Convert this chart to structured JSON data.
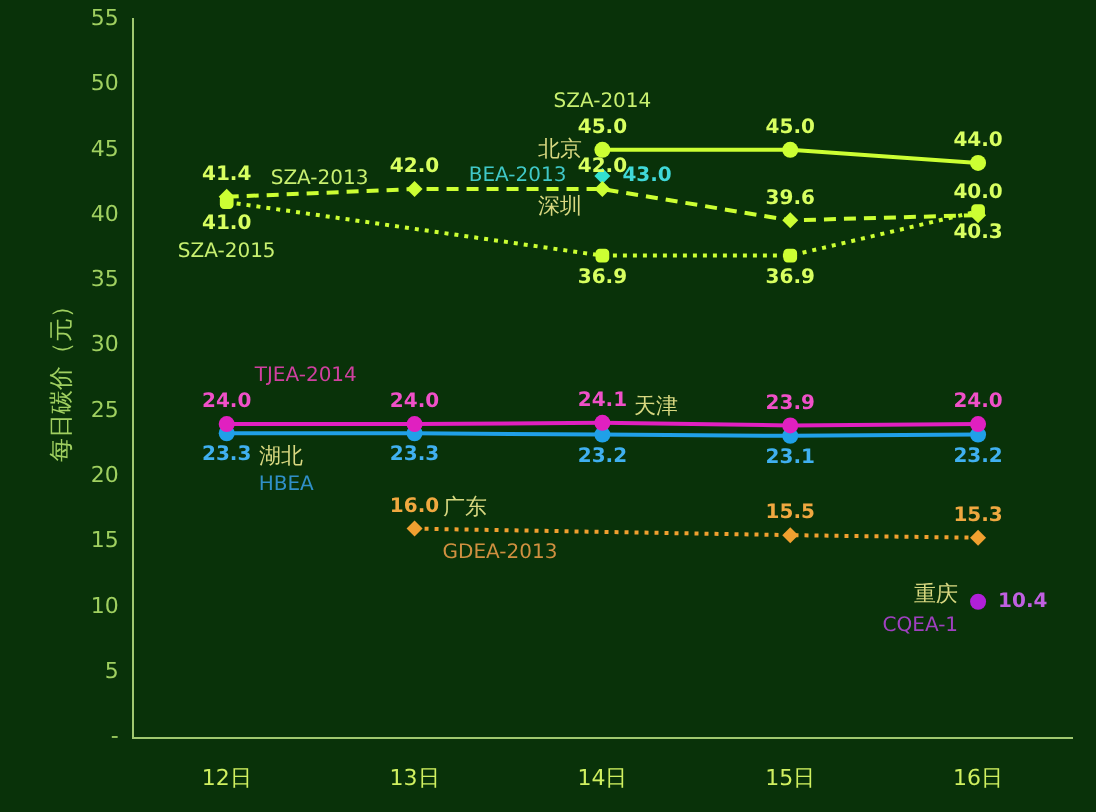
{
  "chart_data": {
    "type": "line",
    "ylabel": "每日碳价（元）",
    "categories": [
      "12日",
      "13日",
      "14日",
      "15日",
      "16日"
    ],
    "series": [
      {
        "name": "SZA-2013",
        "color": "#ccff33",
        "marker": "diamond",
        "line_style": "dashed",
        "values": [
          41.4,
          42.0,
          42.0,
          39.6,
          40.0
        ],
        "value_labels": [
          "41.4",
          "42.0",
          "42.0",
          "39.6",
          "40.0"
        ]
      },
      {
        "name": "SZA-2014",
        "color": "#ccff33",
        "marker": "circle",
        "line_style": "solid",
        "values": [
          null,
          null,
          45.0,
          45.0,
          44.0
        ],
        "value_labels": [
          null,
          null,
          "45.0",
          "45.0",
          "44.0"
        ]
      },
      {
        "name": "SZA-2015",
        "color": "#ccff33",
        "marker": "square",
        "line_style": "dotted",
        "values": [
          41.0,
          null,
          36.9,
          36.9,
          40.3
        ],
        "value_labels": [
          "41.0",
          null,
          "36.9",
          "36.9",
          "40.3"
        ]
      },
      {
        "name": "BEA-2013",
        "color": "#33e0d0",
        "marker": "diamond",
        "line_style": "solid",
        "values": [
          null,
          null,
          43.0,
          null,
          null
        ],
        "value_labels": [
          null,
          null,
          "43.0",
          null,
          null
        ]
      },
      {
        "name": "TJEA-2014",
        "color": "#e020c0",
        "marker": "circle",
        "line_style": "solid",
        "values": [
          24.0,
          24.0,
          24.1,
          23.9,
          24.0
        ],
        "value_labels": [
          "24.0",
          "24.0",
          "24.1",
          "23.9",
          "24.0"
        ]
      },
      {
        "name": "HBEA",
        "color": "#20a0e8",
        "marker": "circle",
        "line_style": "solid",
        "values": [
          23.3,
          23.3,
          23.2,
          23.1,
          23.2
        ],
        "value_labels": [
          "23.3",
          "23.3",
          "23.2",
          "23.1",
          "23.2"
        ]
      },
      {
        "name": "GDEA-2013",
        "color": "#f0a030",
        "marker": "diamond",
        "line_style": "dotted",
        "values": [
          null,
          16.0,
          null,
          15.5,
          15.3
        ],
        "value_labels": [
          null,
          "16.0",
          null,
          "15.5",
          "15.3"
        ]
      },
      {
        "name": "CQEA-1",
        "color": "#b020d8",
        "marker": "circle",
        "line_style": "solid",
        "values": [
          null,
          null,
          null,
          null,
          10.4
        ],
        "value_labels": [
          null,
          null,
          null,
          null,
          "10.4"
        ]
      }
    ],
    "annotations": [
      {
        "text": "北京",
        "x": "14日",
        "y": 45.0
      },
      {
        "text": "深圳",
        "x": "14日",
        "y": 42.0
      },
      {
        "text": "天津",
        "x": "14日",
        "y": 24.1
      },
      {
        "text": "湖北",
        "x": "12日",
        "y": 23.3
      },
      {
        "text": "广东",
        "x": "13日",
        "y": 16.0
      },
      {
        "text": "重庆",
        "x": "16日",
        "y": 10.4
      }
    ],
    "ylim": [
      0,
      55
    ],
    "yticks": [
      {
        "value": 0,
        "label": "-"
      },
      5,
      10,
      15,
      20,
      25,
      30,
      35,
      40,
      45,
      50,
      55
    ],
    "grid": false,
    "legend": false
  }
}
